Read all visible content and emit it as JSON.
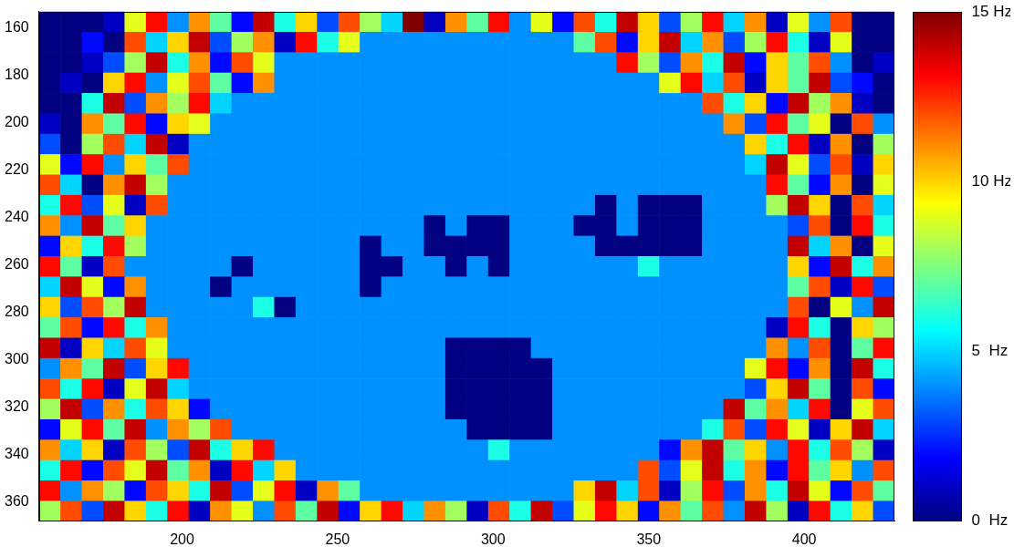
{
  "chart_data": {
    "type": "heatmap",
    "xlim": [
      154,
      429
    ],
    "ylim": [
      368,
      153
    ],
    "xticks": [
      200,
      250,
      300,
      350,
      400
    ],
    "yticks": [
      160,
      180,
      200,
      220,
      240,
      260,
      280,
      300,
      320,
      340,
      360
    ],
    "grid": false,
    "x_bins": [
      154,
      160.875,
      167.75,
      174.625,
      181.5,
      188.375,
      195.25,
      202.125,
      209,
      215.875,
      222.75,
      229.625,
      236.5,
      243.375,
      250.25,
      257.125,
      264,
      270.875,
      277.75,
      284.625,
      291.5,
      298.375,
      305.25,
      312.125,
      319,
      325.875,
      332.75,
      339.625,
      346.5,
      353.375,
      360.25,
      367.125,
      374,
      380.875,
      387.75,
      394.625,
      401.5,
      408.375,
      415.25,
      422.125,
      429
    ],
    "y_bins": [
      153,
      161.6,
      170.2,
      178.8,
      187.4,
      196,
      204.6,
      213.2,
      221.8,
      230.4,
      239,
      247.6,
      256.2,
      264.8,
      273.4,
      282,
      290.6,
      299.2,
      307.8,
      316.4,
      325,
      333.6,
      342.2,
      350.8,
      359.4,
      368
    ],
    "cells": [
      [
        0,
        0,
        0,
        1,
        9,
        13,
        4,
        11,
        7,
        2,
        14,
        6,
        10,
        3,
        12,
        8,
        5,
        15,
        1,
        11,
        7,
        13,
        4,
        9,
        2,
        12,
        6,
        14,
        10,
        3,
        8,
        13,
        5,
        11,
        1,
        9,
        4,
        12,
        0,
        0
      ],
      [
        0,
        0,
        2,
        0,
        12,
        5,
        10,
        14,
        3,
        8,
        11,
        1,
        13,
        6,
        9,
        4,
        4,
        4,
        4,
        4,
        4,
        4,
        4,
        4,
        4,
        7,
        12,
        2,
        10,
        14,
        5,
        11,
        3,
        8,
        13,
        6,
        1,
        9,
        0,
        0
      ],
      [
        0,
        0,
        1,
        3,
        8,
        14,
        6,
        11,
        2,
        12,
        9,
        4,
        4,
        4,
        4,
        4,
        4,
        4,
        4,
        4,
        4,
        4,
        4,
        4,
        4,
        4,
        4,
        13,
        8,
        3,
        11,
        6,
        14,
        2,
        10,
        7,
        12,
        4,
        0,
        1
      ],
      [
        0,
        1,
        0,
        10,
        13,
        4,
        9,
        12,
        7,
        2,
        11,
        4,
        4,
        4,
        4,
        4,
        4,
        4,
        4,
        4,
        4,
        4,
        4,
        4,
        4,
        4,
        4,
        4,
        4,
        9,
        13,
        5,
        12,
        1,
        10,
        7,
        14,
        3,
        2,
        0
      ],
      [
        0,
        0,
        6,
        14,
        3,
        11,
        8,
        13,
        5,
        4,
        4,
        4,
        4,
        4,
        4,
        4,
        4,
        4,
        4,
        4,
        4,
        4,
        4,
        4,
        4,
        4,
        4,
        4,
        4,
        4,
        4,
        12,
        6,
        10,
        2,
        14,
        8,
        11,
        1,
        0
      ],
      [
        1,
        0,
        11,
        7,
        13,
        2,
        10,
        9,
        4,
        4,
        4,
        4,
        4,
        4,
        4,
        4,
        4,
        4,
        4,
        4,
        4,
        4,
        4,
        4,
        4,
        4,
        4,
        4,
        4,
        4,
        4,
        4,
        11,
        3,
        13,
        7,
        9,
        0,
        12,
        4
      ],
      [
        3,
        0,
        8,
        12,
        5,
        14,
        1,
        4,
        4,
        4,
        4,
        4,
        4,
        4,
        4,
        4,
        4,
        4,
        4,
        4,
        4,
        4,
        4,
        4,
        4,
        4,
        4,
        4,
        4,
        4,
        4,
        4,
        4,
        10,
        6,
        13,
        1,
        11,
        0,
        8
      ],
      [
        9,
        2,
        13,
        4,
        10,
        7,
        12,
        4,
        4,
        4,
        4,
        4,
        4,
        4,
        4,
        4,
        4,
        4,
        4,
        4,
        4,
        4,
        4,
        4,
        4,
        4,
        4,
        4,
        4,
        4,
        4,
        4,
        4,
        5,
        14,
        9,
        3,
        12,
        1,
        10
      ],
      [
        12,
        5,
        0,
        11,
        14,
        8,
        4,
        4,
        4,
        4,
        4,
        4,
        4,
        4,
        4,
        4,
        4,
        4,
        4,
        4,
        4,
        4,
        4,
        4,
        4,
        4,
        4,
        4,
        4,
        4,
        4,
        4,
        4,
        4,
        13,
        7,
        2,
        11,
        0,
        9
      ],
      [
        6,
        13,
        3,
        9,
        1,
        12,
        4,
        4,
        4,
        4,
        4,
        4,
        4,
        4,
        4,
        4,
        4,
        4,
        4,
        4,
        4,
        4,
        4,
        4,
        4,
        4,
        0,
        4,
        0,
        0,
        0,
        4,
        4,
        4,
        8,
        14,
        10,
        0,
        12,
        5
      ],
      [
        11,
        4,
        14,
        7,
        10,
        4,
        4,
        4,
        4,
        4,
        4,
        4,
        4,
        4,
        4,
        4,
        4,
        4,
        0,
        4,
        0,
        0,
        4,
        4,
        4,
        0,
        0,
        4,
        0,
        0,
        0,
        4,
        4,
        4,
        4,
        3,
        12,
        0,
        13,
        6
      ],
      [
        2,
        10,
        6,
        13,
        8,
        4,
        4,
        4,
        4,
        4,
        4,
        4,
        4,
        4,
        4,
        0,
        4,
        4,
        0,
        0,
        0,
        0,
        4,
        4,
        4,
        4,
        0,
        0,
        0,
        0,
        0,
        4,
        4,
        4,
        4,
        14,
        5,
        11,
        0,
        9
      ],
      [
        13,
        7,
        1,
        12,
        4,
        4,
        4,
        4,
        4,
        0,
        4,
        4,
        4,
        4,
        4,
        0,
        0,
        4,
        4,
        0,
        4,
        0,
        4,
        4,
        4,
        4,
        4,
        4,
        6,
        4,
        4,
        4,
        4,
        4,
        4,
        10,
        2,
        14,
        6,
        11
      ],
      [
        5,
        14,
        9,
        2,
        11,
        4,
        4,
        4,
        0,
        4,
        4,
        4,
        4,
        4,
        4,
        0,
        4,
        4,
        4,
        4,
        4,
        4,
        4,
        4,
        4,
        4,
        4,
        4,
        4,
        4,
        4,
        4,
        4,
        4,
        4,
        7,
        12,
        1,
        13,
        3
      ],
      [
        10,
        3,
        12,
        8,
        14,
        4,
        4,
        4,
        4,
        4,
        6,
        0,
        4,
        4,
        4,
        4,
        4,
        4,
        4,
        4,
        4,
        4,
        4,
        4,
        4,
        4,
        4,
        4,
        4,
        4,
        4,
        4,
        4,
        4,
        4,
        12,
        0,
        9,
        4,
        14
      ],
      [
        7,
        12,
        2,
        13,
        6,
        11,
        4,
        4,
        4,
        4,
        4,
        4,
        4,
        4,
        4,
        4,
        4,
        4,
        4,
        4,
        4,
        4,
        4,
        4,
        4,
        4,
        4,
        4,
        4,
        4,
        4,
        4,
        4,
        4,
        1,
        13,
        6,
        0,
        10,
        8
      ],
      [
        14,
        1,
        10,
        5,
        12,
        9,
        4,
        4,
        4,
        4,
        4,
        4,
        4,
        4,
        4,
        4,
        4,
        4,
        4,
        0,
        0,
        0,
        0,
        4,
        4,
        4,
        4,
        4,
        4,
        4,
        4,
        4,
        4,
        4,
        11,
        4,
        12,
        0,
        7,
        13
      ],
      [
        4,
        11,
        7,
        14,
        3,
        10,
        13,
        4,
        4,
        4,
        4,
        4,
        4,
        4,
        4,
        4,
        4,
        4,
        4,
        0,
        0,
        0,
        0,
        0,
        4,
        4,
        4,
        4,
        4,
        4,
        4,
        4,
        4,
        9,
        13,
        2,
        11,
        0,
        14,
        6
      ],
      [
        12,
        6,
        13,
        1,
        9,
        14,
        5,
        4,
        4,
        4,
        4,
        4,
        4,
        4,
        4,
        4,
        4,
        4,
        4,
        0,
        0,
        0,
        0,
        0,
        4,
        4,
        4,
        4,
        4,
        4,
        4,
        4,
        4,
        3,
        10,
        14,
        7,
        0,
        12,
        2
      ],
      [
        8,
        14,
        3,
        11,
        6,
        12,
        10,
        2,
        4,
        4,
        4,
        4,
        4,
        4,
        4,
        4,
        4,
        4,
        4,
        0,
        0,
        0,
        0,
        0,
        4,
        4,
        4,
        4,
        4,
        4,
        4,
        4,
        14,
        7,
        11,
        5,
        13,
        0,
        9,
        12
      ],
      [
        2,
        9,
        13,
        7,
        14,
        4,
        11,
        8,
        12,
        4,
        4,
        4,
        4,
        4,
        4,
        4,
        4,
        4,
        4,
        4,
        0,
        0,
        0,
        0,
        4,
        4,
        4,
        4,
        4,
        4,
        4,
        6,
        12,
        3,
        13,
        9,
        1,
        10,
        14,
        5
      ],
      [
        11,
        5,
        10,
        1,
        12,
        8,
        3,
        14,
        6,
        10,
        13,
        4,
        4,
        4,
        4,
        4,
        4,
        4,
        4,
        4,
        4,
        6,
        4,
        4,
        4,
        4,
        4,
        4,
        4,
        2,
        11,
        14,
        7,
        10,
        4,
        13,
        6,
        12,
        8,
        1
      ],
      [
        6,
        13,
        2,
        12,
        9,
        14,
        7,
        11,
        1,
        13,
        5,
        10,
        4,
        4,
        4,
        4,
        4,
        4,
        4,
        4,
        4,
        4,
        4,
        4,
        4,
        4,
        4,
        4,
        12,
        3,
        9,
        14,
        6,
        11,
        2,
        13,
        7,
        10,
        4,
        12
      ],
      [
        13,
        4,
        11,
        8,
        2,
        12,
        10,
        6,
        14,
        3,
        9,
        13,
        1,
        11,
        7,
        4,
        4,
        4,
        4,
        4,
        4,
        4,
        4,
        4,
        4,
        10,
        14,
        5,
        12,
        1,
        8,
        13,
        3,
        11,
        6,
        14,
        9,
        2,
        12,
        7
      ],
      [
        8,
        12,
        3,
        14,
        10,
        6,
        13,
        1,
        11,
        9,
        4,
        12,
        7,
        14,
        2,
        10,
        13,
        5,
        11,
        8,
        1,
        12,
        6,
        14,
        3,
        9,
        13,
        10,
        2,
        11,
        7,
        12,
        4,
        14,
        8,
        1,
        13,
        6,
        10,
        3
      ]
    ],
    "colorbar": {
      "range": [
        0,
        15
      ],
      "ticks": [
        {
          "value": 0,
          "label": "0  Hz"
        },
        {
          "value": 5,
          "label": "5  Hz"
        },
        {
          "value": 10,
          "label": "10 Hz"
        },
        {
          "value": 15,
          "label": "15 Hz"
        }
      ]
    }
  }
}
